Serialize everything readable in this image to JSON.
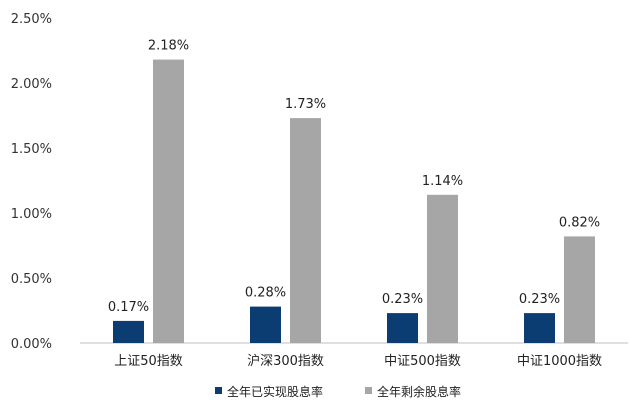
{
  "chart_data": {
    "type": "bar",
    "categories": [
      "上证50指数",
      "沪深300指数",
      "中证500指数",
      "中证1000指数"
    ],
    "series": [
      {
        "name": "全年已实现股息率",
        "color": "#0b3d73",
        "values": [
          0.17,
          0.28,
          0.23,
          0.23
        ],
        "labels": [
          "0.17%",
          "0.28%",
          "0.23%",
          "0.23%"
        ]
      },
      {
        "name": "全年剩余股息率",
        "color": "#a6a6a6",
        "values": [
          2.18,
          1.73,
          1.14,
          0.82
        ],
        "labels": [
          "2.18%",
          "1.73%",
          "1.14%",
          "0.82%"
        ]
      }
    ],
    "y_ticks": [
      0,
      0.5,
      1.0,
      1.5,
      2.0,
      2.5
    ],
    "y_tick_labels": [
      "0.00%",
      "0.50%",
      "1.00%",
      "1.50%",
      "2.00%",
      "2.50%"
    ],
    "ylim": [
      0,
      2.5
    ],
    "ylabel": "",
    "xlabel": "",
    "title": "",
    "grid": false,
    "legend_position": "bottom",
    "axis_color": "#bfbfbf"
  }
}
